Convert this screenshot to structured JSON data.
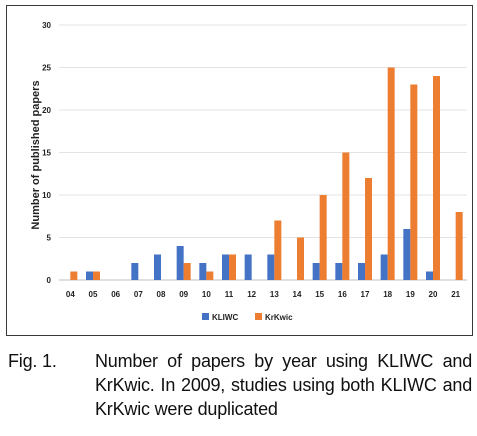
{
  "chart_data": {
    "type": "bar",
    "categories": [
      "04",
      "05",
      "06",
      "07",
      "08",
      "09",
      "10",
      "11",
      "12",
      "13",
      "14",
      "15",
      "16",
      "17",
      "18",
      "19",
      "20",
      "21"
    ],
    "series": [
      {
        "name": "KLIWC",
        "color": "#4472c4",
        "values": [
          0,
          1,
          0,
          2,
          3,
          4,
          2,
          3,
          3,
          3,
          0,
          2,
          2,
          2,
          3,
          6,
          1,
          0
        ]
      },
      {
        "name": "KrKwic",
        "color": "#ed7d31",
        "values": [
          1,
          1,
          0,
          0,
          0,
          2,
          1,
          3,
          0,
          7,
          5,
          10,
          15,
          12,
          25,
          23,
          24,
          8
        ]
      }
    ],
    "ylabel": "Number of published papers",
    "ylim": [
      0,
      30
    ],
    "yticks": [
      0,
      5,
      10,
      15,
      20,
      25,
      30
    ],
    "grid": true,
    "legend": "bottom-center"
  },
  "caption": {
    "label": "Fig. 1.",
    "text": "Number of papers by year using KLIWC and KrKwic. In 2009, studies using both KLIWC and KrKwic were duplicated"
  }
}
